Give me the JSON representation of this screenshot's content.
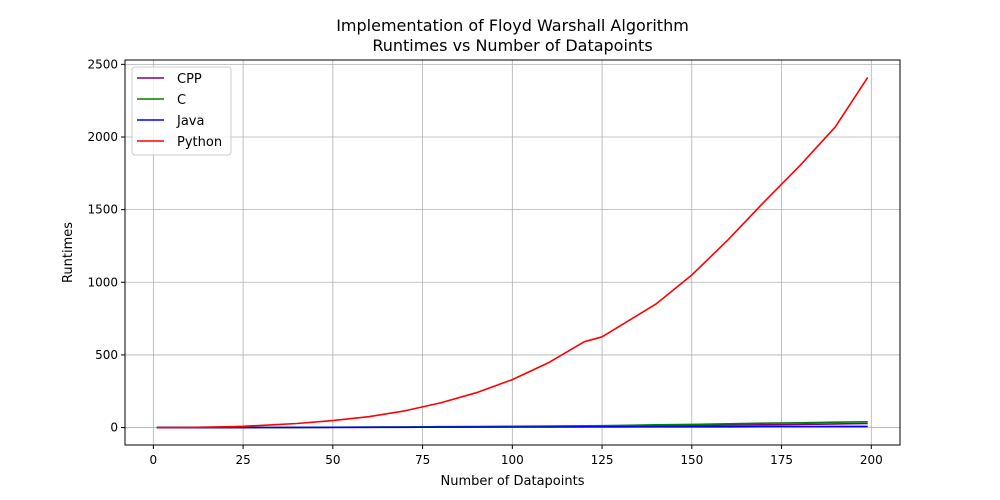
{
  "chart_data": {
    "type": "line",
    "title": [
      "Implementation of Floyd Warshall Algorithm",
      "Runtimes vs Number of Datapoints"
    ],
    "xlabel": "Number of Datapoints",
    "ylabel": "Runtimes",
    "xlim": [
      -7.9,
      208
    ],
    "ylim": [
      -120,
      2530
    ],
    "xticks": [
      0,
      25,
      50,
      75,
      100,
      125,
      150,
      175,
      200
    ],
    "yticks": [
      0,
      500,
      1000,
      1500,
      2000,
      2500
    ],
    "grid": true,
    "legend_position": "top-left",
    "x": [
      1,
      10,
      20,
      25,
      30,
      40,
      50,
      60,
      70,
      80,
      90,
      100,
      110,
      120,
      125,
      130,
      140,
      150,
      160,
      170,
      180,
      190,
      199
    ],
    "series": [
      {
        "name": "CPP",
        "color": "#800080",
        "values": [
          0,
          0,
          0,
          0,
          0.5,
          1,
          1.5,
          2,
          3,
          4,
          5,
          6,
          7,
          8,
          9,
          10,
          12,
          14,
          17,
          19,
          22,
          25,
          28
        ]
      },
      {
        "name": "C",
        "color": "#008000",
        "values": [
          0,
          0,
          0,
          0,
          0.5,
          1,
          2,
          3,
          4,
          6,
          7,
          9,
          11,
          12,
          13,
          15,
          19,
          22,
          26,
          30,
          33,
          37,
          40
        ]
      },
      {
        "name": "Java",
        "color": "#0000ff",
        "values": [
          0,
          0,
          0,
          0,
          0.5,
          1,
          1.5,
          2,
          2,
          3,
          3,
          4,
          4,
          5,
          5,
          5,
          6,
          6,
          6,
          7,
          7,
          8,
          8
        ]
      },
      {
        "name": "Python",
        "color": "#ff0000",
        "values": [
          0,
          1,
          5,
          9,
          15,
          28,
          48,
          75,
          115,
          170,
          240,
          330,
          445,
          590,
          625,
          700,
          850,
          1050,
          1290,
          1550,
          1800,
          2070,
          2410
        ]
      }
    ]
  }
}
